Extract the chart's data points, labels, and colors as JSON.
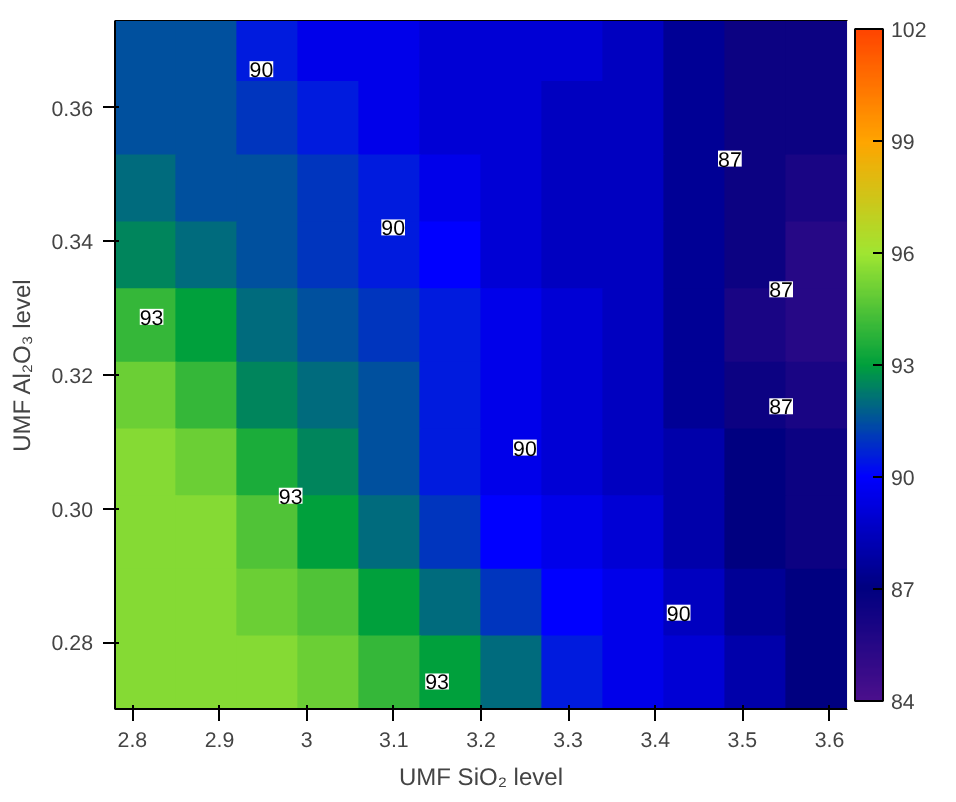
{
  "chart_data": {
    "type": "heatmap",
    "xlabel": "UMF SiO₂ level",
    "ylabel": "UMF Al₂O₃ level",
    "x": [
      2.815,
      2.885,
      2.955,
      3.025,
      3.095,
      3.165,
      3.235,
      3.305,
      3.375,
      3.445,
      3.515,
      3.585
    ],
    "y": [
      0.368,
      0.358,
      0.347,
      0.337,
      0.327,
      0.316,
      0.306,
      0.296,
      0.285,
      0.275
    ],
    "xlim": [
      2.78,
      3.62
    ],
    "ylim": [
      0.27,
      0.373
    ],
    "xticks": [
      2.8,
      2.9,
      3.0,
      3.1,
      3.2,
      3.3,
      3.4,
      3.5,
      3.6
    ],
    "yticks": [
      {
        "value": 0.28,
        "label": "0.28"
      },
      {
        "value": 0.3,
        "label": "0.30"
      },
      {
        "value": 0.32,
        "label": "0.32"
      },
      {
        "value": 0.34,
        "label": "0.34"
      },
      {
        "value": 0.36,
        "label": "0.36"
      }
    ],
    "clim": [
      84,
      102
    ],
    "cticks": [
      84,
      87,
      90,
      93,
      96,
      99,
      102
    ],
    "colors": [
      "#4b0f8c",
      "#000080",
      "#0000ff",
      "#00a03c",
      "#a0e632",
      "#ffa500",
      "#ff4500"
    ],
    "cells": [
      [
        91.5,
        91.5,
        90.5,
        89.5,
        89.5,
        89,
        89,
        89,
        88.5,
        87.5,
        86.5,
        86.5
      ],
      [
        91.5,
        91.5,
        91,
        90.5,
        89.5,
        89,
        89,
        88.5,
        88.5,
        87.5,
        86.5,
        86.5
      ],
      [
        92,
        91.5,
        91.5,
        91,
        90.5,
        89.5,
        89,
        88.5,
        88.5,
        87.5,
        86.5,
        86
      ],
      [
        92.5,
        92,
        91.5,
        91,
        90.5,
        90,
        89,
        88.5,
        88.5,
        87.5,
        86.5,
        85.5
      ],
      [
        94,
        93,
        92,
        91.5,
        91,
        90.5,
        89.5,
        89,
        88.5,
        87.5,
        86,
        85.5
      ],
      [
        95,
        94,
        92.5,
        92,
        91.5,
        90.5,
        89.5,
        89,
        88.5,
        87.5,
        86.5,
        86
      ],
      [
        95.5,
        95,
        93.5,
        92.5,
        91.5,
        90.5,
        89.5,
        89,
        88.5,
        88,
        87,
        86.5
      ],
      [
        95.5,
        95.5,
        94.5,
        93,
        92,
        91,
        90,
        89.5,
        89,
        88,
        87,
        86.5
      ],
      [
        95.5,
        95.5,
        95,
        94.5,
        93,
        92,
        91,
        90,
        89.5,
        88.5,
        87.5,
        87
      ],
      [
        95.5,
        95.5,
        95.5,
        95,
        94,
        93,
        92,
        90.5,
        89.5,
        89,
        88,
        87
      ]
    ],
    "annotations": [
      "90",
      "90",
      "90",
      "90",
      "87",
      "87",
      "87",
      "93",
      "93",
      "93"
    ]
  }
}
